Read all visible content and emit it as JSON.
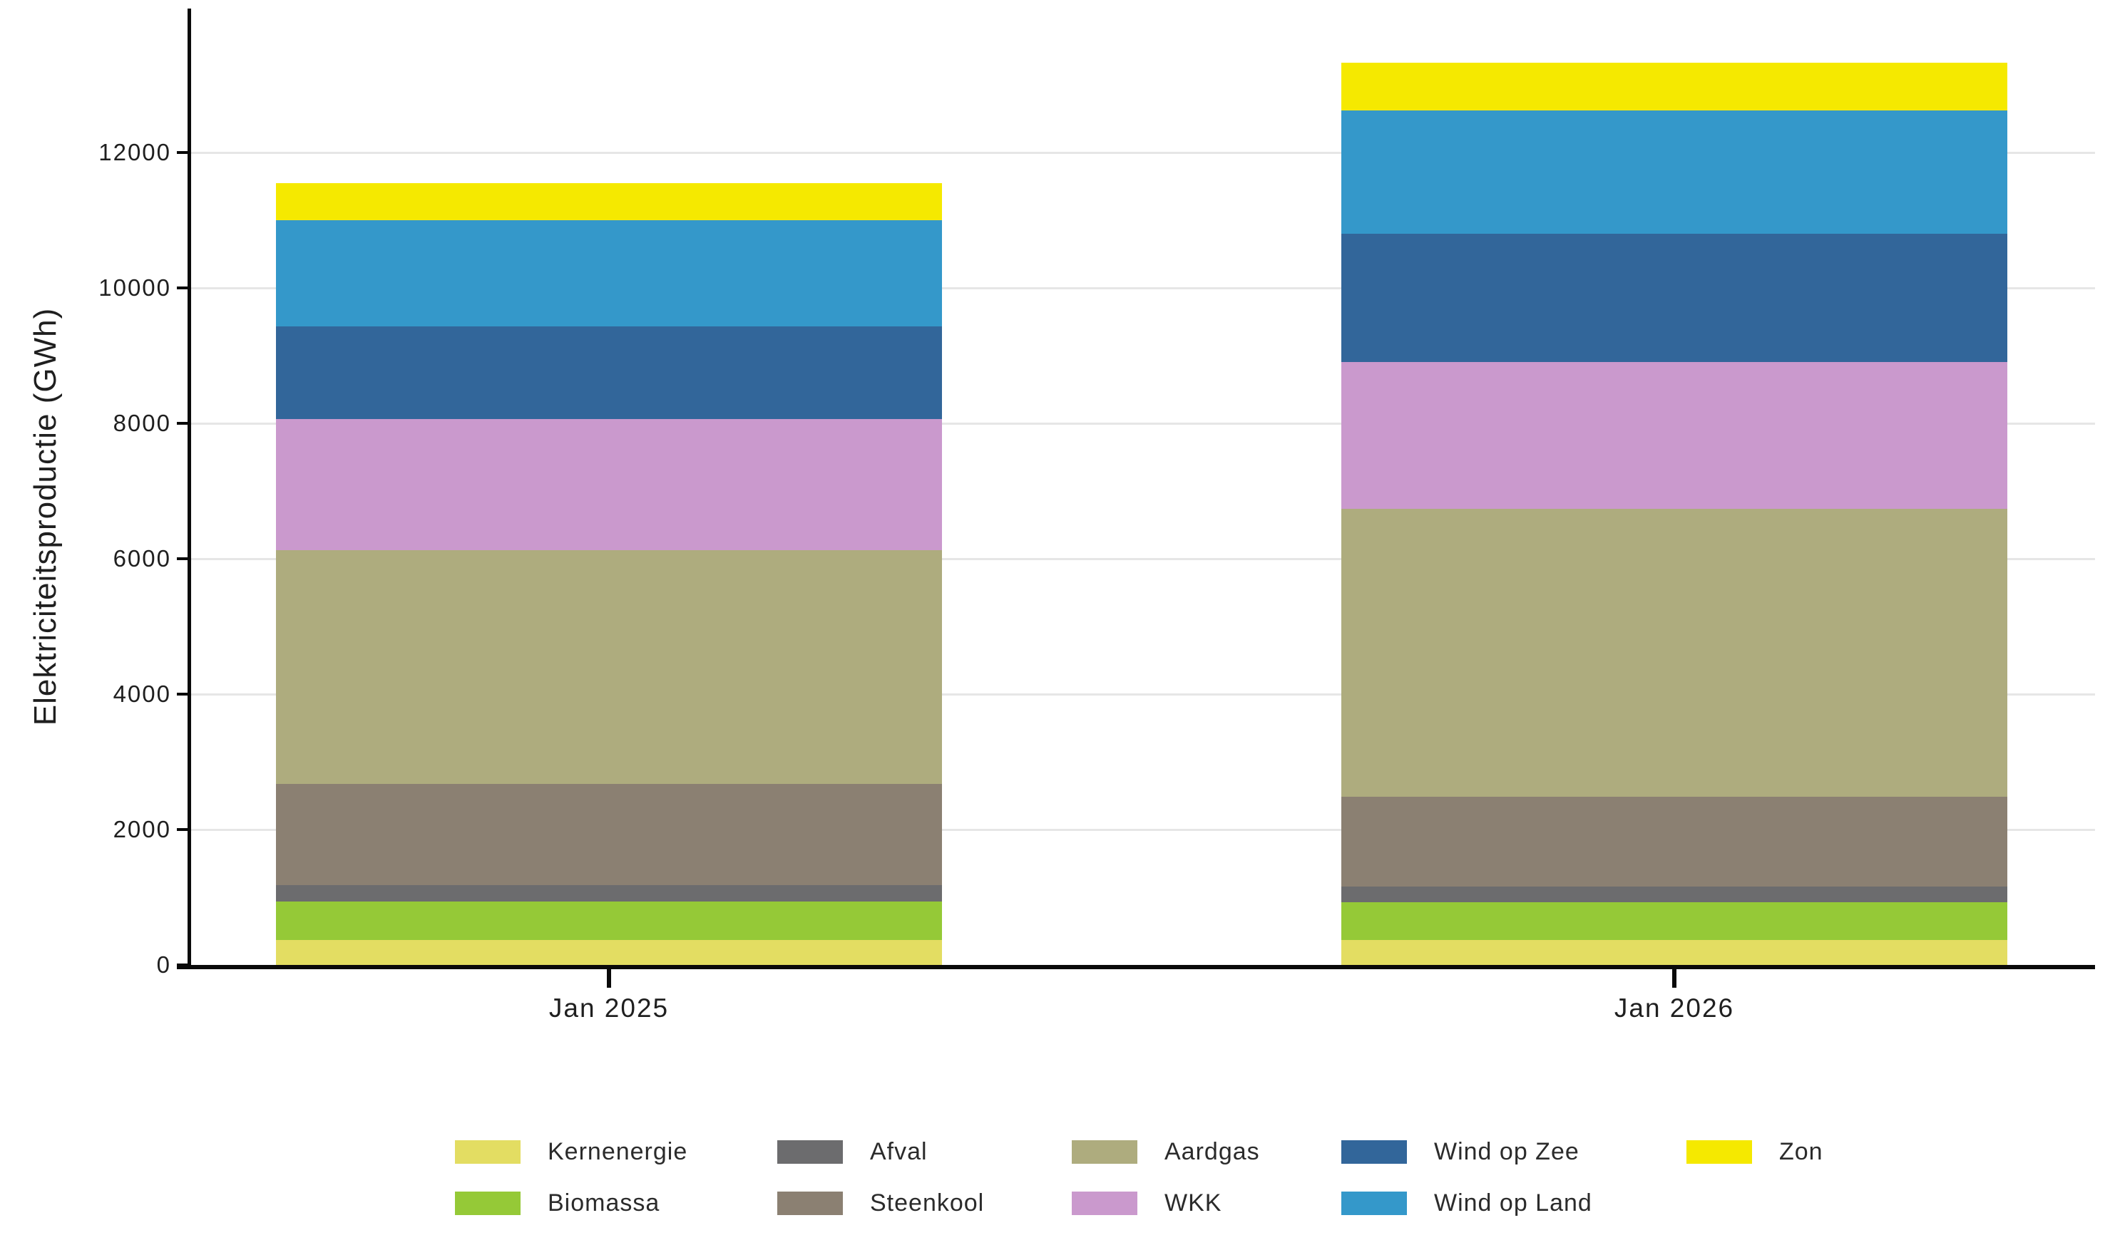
{
  "y_axis": {
    "title": "Elektriciteitsproductie (GWh)",
    "tick_values": [
      0,
      2000,
      4000,
      6000,
      8000,
      10000,
      12000
    ],
    "tick_labels": [
      "0",
      "2000",
      "4000",
      "6000",
      "8000",
      "10000",
      "12000"
    ]
  },
  "x_axis": {
    "categories": [
      "Jan 2025",
      "Jan 2026"
    ]
  },
  "chart_data": {
    "type": "bar",
    "stacked": true,
    "title": "",
    "xlabel": "",
    "ylabel": "Elektriciteitsproductie (GWh)",
    "ylim": [
      0,
      14000
    ],
    "grid": true,
    "legend_position": "bottom",
    "categories": [
      "Jan 2025",
      "Jan 2026"
    ],
    "series": [
      {
        "name": "Kernenergie",
        "color": "#e3dd62",
        "values": [
          370,
          370
        ]
      },
      {
        "name": "Biomassa",
        "color": "#95c937",
        "values": [
          570,
          560
        ]
      },
      {
        "name": "Afval",
        "color": "#6c6c6e",
        "values": [
          240,
          230
        ]
      },
      {
        "name": "Steenkool",
        "color": "#8b8072",
        "values": [
          1490,
          1320
        ]
      },
      {
        "name": "Aardgas",
        "color": "#aeac7e",
        "values": [
          3460,
          4260
        ]
      },
      {
        "name": "WKK",
        "color": "#ca99cd",
        "values": [
          1930,
          2170
        ]
      },
      {
        "name": "Wind op Zee",
        "color": "#32669a",
        "values": [
          1370,
          1890
        ]
      },
      {
        "name": "Wind op Land",
        "color": "#3498ca",
        "values": [
          1570,
          1820
        ]
      },
      {
        "name": "Zon",
        "color": "#f5e900",
        "values": [
          550,
          710
        ]
      }
    ],
    "totals": [
      11550,
      13330
    ]
  },
  "legend": {
    "columns": [
      [
        "Kernenergie",
        "Biomassa"
      ],
      [
        "Afval",
        "Steenkool"
      ],
      [
        "Aardgas",
        "WKK"
      ],
      [
        "Wind op Zee",
        "Wind op Land"
      ],
      [
        "Zon"
      ]
    ]
  },
  "colors": {
    "axis": "#0a0a0a",
    "gridline": "#e6e6e6",
    "background": "#ffffff"
  }
}
